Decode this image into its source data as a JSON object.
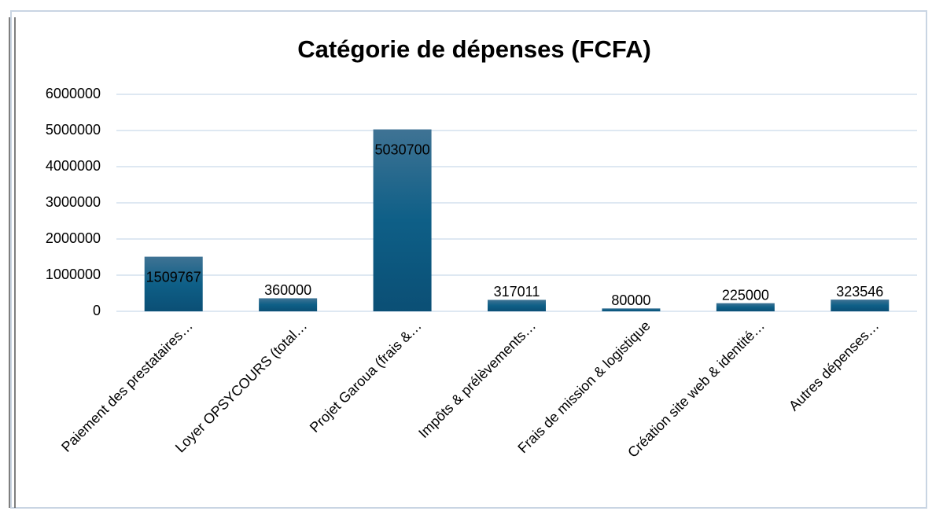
{
  "chart_data": {
    "type": "bar",
    "title": "Catégorie de dépenses (FCFA)",
    "categories": [
      "Paiement des prestataires…",
      "Loyer OPSYCOURS (total…",
      "Projet Garoua (frais &…",
      "Impôts & prélèvements…",
      "Frais de mission & logistique",
      "Création site web & identité…",
      "Autres dépenses…"
    ],
    "values": [
      1509767,
      360000,
      5030700,
      317011,
      80000,
      225000,
      323546
    ],
    "color": "#0e5f87",
    "ylim": [
      0,
      6000000
    ],
    "yticks": [
      0,
      1000000,
      2000000,
      3000000,
      4000000,
      5000000,
      6000000
    ],
    "grid": true
  }
}
